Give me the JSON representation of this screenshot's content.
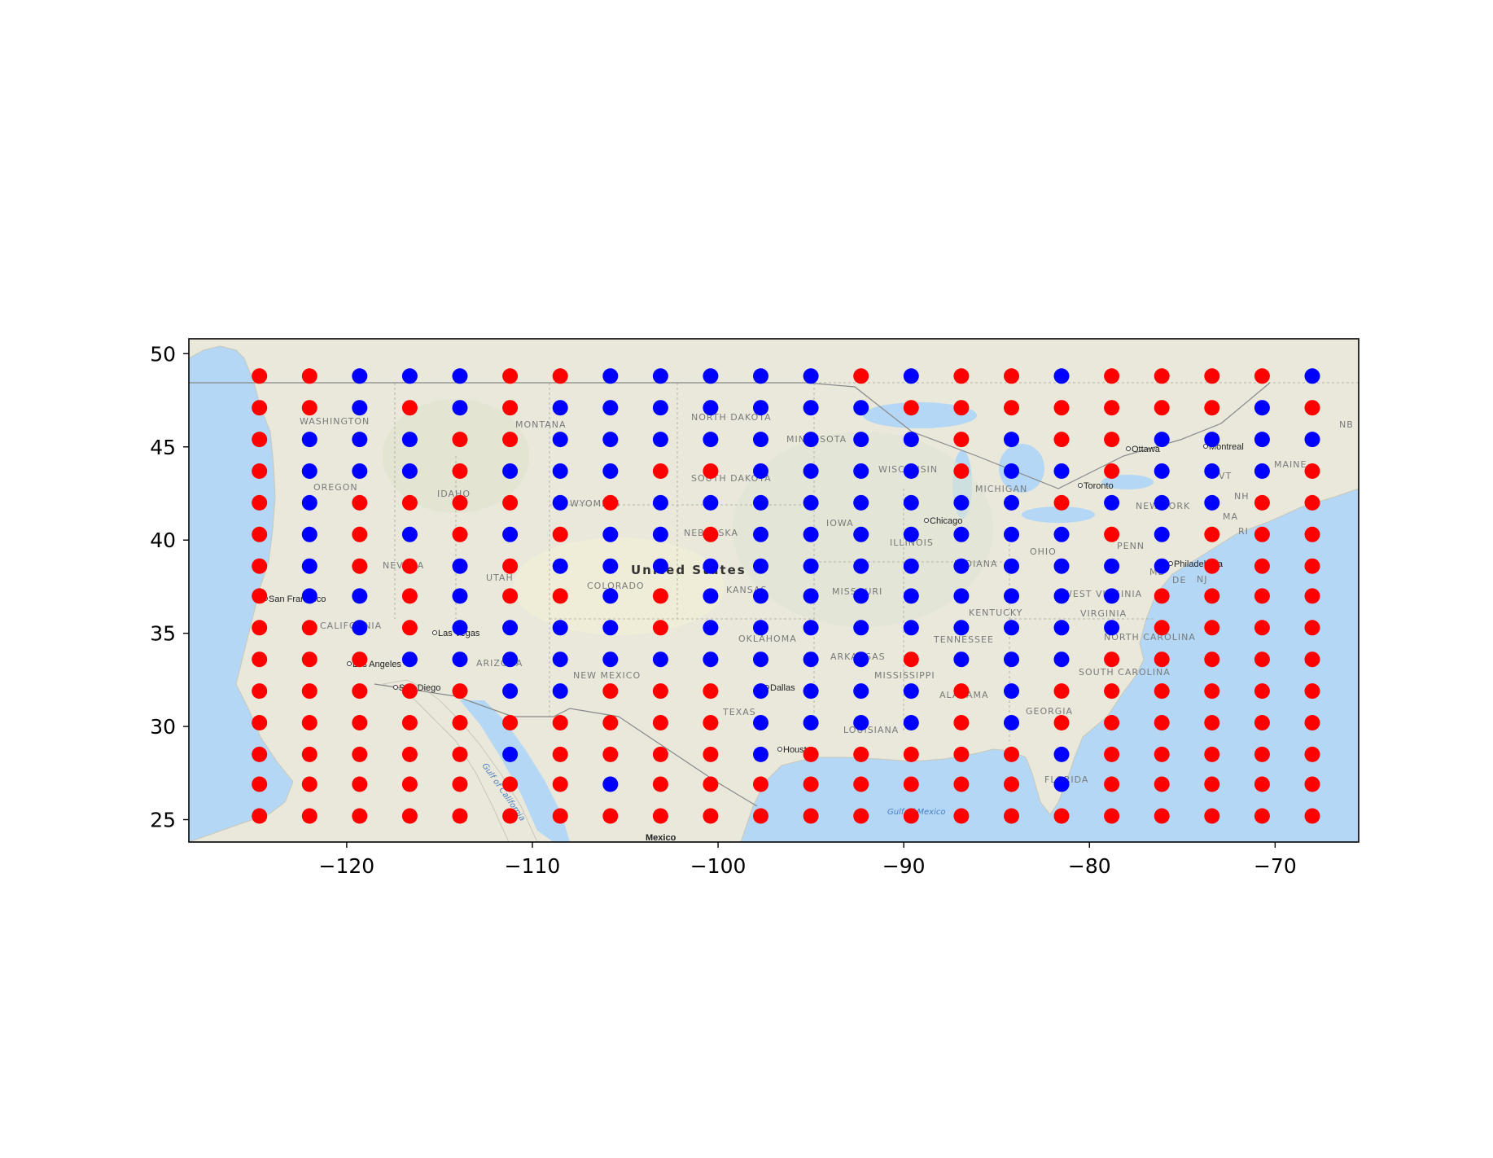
{
  "chart_data": {
    "type": "scatter",
    "title": "",
    "xlabel": "",
    "ylabel": "",
    "xlim": [
      -128.5,
      -65.5
    ],
    "ylim": [
      23.8,
      50.8
    ],
    "xticks": [
      -120,
      -110,
      -100,
      -90,
      -80,
      -70
    ],
    "yticks": [
      25,
      30,
      35,
      40,
      45,
      50
    ],
    "xtick_labels": [
      "−120",
      "−110",
      "−100",
      "−90",
      "−80",
      "−70"
    ],
    "ytick_labels": [
      "25",
      "30",
      "35",
      "40",
      "45",
      "50"
    ],
    "grid": false,
    "legend": "none",
    "colors": {
      "R": "#ff0000",
      "B": "#0000ff"
    },
    "lons": [
      -124.7,
      -122.0,
      -119.3,
      -116.6,
      -113.9,
      -111.2,
      -108.5,
      -105.8,
      -103.1,
      -100.4,
      -97.7,
      -95.0,
      -92.3,
      -89.6,
      -86.9,
      -84.2,
      -81.5,
      -78.8,
      -76.1,
      -73.4,
      -70.7,
      -68.0
    ],
    "lats": [
      48.8,
      47.1,
      45.4,
      43.7,
      42.0,
      40.3,
      38.6,
      37.0,
      35.3,
      33.6,
      31.9,
      30.2,
      28.5,
      26.9,
      25.2
    ],
    "point_colors": [
      "RRBBBRRBBBBBRBRRBRRRRB",
      "RRBRBRBBBBBBBRRRRRRRBR",
      "RBBBRRBBBBBBBBRBRRBBBB",
      "RBBBRBBBRRBBBBRBBRBBBR",
      "RBRRRRBRBBBBBBBBRBBBRR",
      "RBRBRBRBBRBBBBBBBRBRRR",
      "RBRRBRBBBBBBBBBBBBBRRR",
      "RBBRBRRBRBBBBBBBBBRRRR",
      "RRBRBBBBRBBBBBBBBBRRRR",
      "RRRBBBBBBBBBBRBBBRRRRR",
      "RRRRRBBRRRBBBBRBRRRRRR",
      "RRRRRRRRRRBBBBRBRRRRRR",
      "RRRRRBRRRRBRRRRRBRRRRR",
      "RRRRRRRBRRRRRRRRBRRRRR",
      "RRRRRRRRRRRRRRRRRRRRRR"
    ],
    "basemap_labels": {
      "country": "United States",
      "mexico": "Mexico",
      "states": [
        "WASHINGTON",
        "OREGON",
        "IDAHO",
        "MONTANA",
        "NORTH DAKOTA",
        "SOUTH DAKOTA",
        "NEVADA",
        "UTAH",
        "WYOMING",
        "COLORADO",
        "CALIFORNIA",
        "ARIZONA",
        "NEW MEXICO",
        "NEBRASKA",
        "KANSAS",
        "OKLAHOMA",
        "TEXAS",
        "MINNESOTA",
        "IOWA",
        "MISSOURI",
        "ARKANSAS",
        "LOUISIANA",
        "WISCONSIN",
        "ILLINOIS",
        "MISSISSIPPI",
        "ALABAMA",
        "TENNESSEE",
        "KENTUCKY",
        "INDIANA",
        "OHIO",
        "MICHIGAN",
        "GEORGIA",
        "FLORIDA",
        "SOUTH CAROLINA",
        "NORTH CAROLINA",
        "VIRGINIA",
        "WEST VIRGINIA",
        "PENN",
        "NEW YORK",
        "MAINE",
        "VT",
        "NH",
        "MA",
        "RI",
        "NJ",
        "DE",
        "MD",
        "NB"
      ],
      "cities": [
        "San Francisco",
        "Los Angeles",
        "San Diego",
        "Las Vegas",
        "Dallas",
        "Houston",
        "Chicago",
        "Toronto",
        "Ottawa",
        "Montreal",
        "Philadelphia"
      ],
      "water": [
        "Gulf of California",
        "Gulf of Mexico"
      ]
    }
  }
}
